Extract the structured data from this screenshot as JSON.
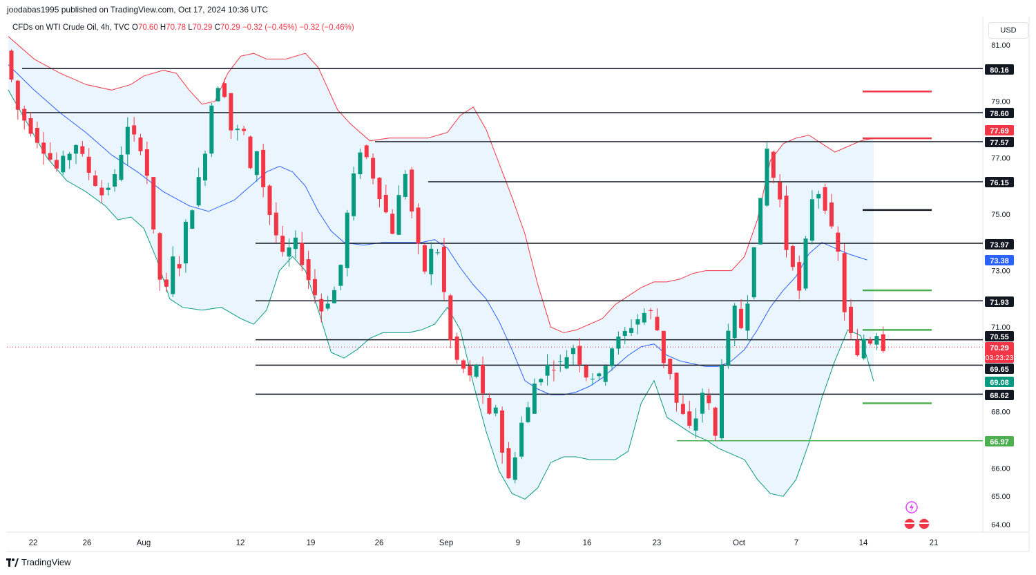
{
  "header": {
    "publisher_text": "joodabas1995 published on TradingView.com, Oct 17, 2024 10:36 UTC"
  },
  "legend": {
    "symbol": "CFDs on WTI Crude Oil, 4h, TVC",
    "open_label": "O",
    "open": "70.60",
    "high_label": "H",
    "high": "70.78",
    "low_label": "L",
    "low": "70.29",
    "close_label": "C",
    "close": "70.29",
    "change": "−0.32 (−0.45%)",
    "change2": "−0.32 (−0.46%)"
  },
  "currency_button": "USD",
  "brand": {
    "name": "TradingView",
    "icon": "tradingview-logo-icon"
  },
  "colors": {
    "up_candle": "#089981",
    "down_candle": "#f23645",
    "upper_band": "#f23645",
    "lower_band": "#089981",
    "basis_line": "#2962ff",
    "band_fill": "#e3f2fd",
    "level_line": "#131722",
    "green_level": "#4caf50",
    "red_level": "#f23645"
  },
  "chart_data": {
    "type": "candlestick",
    "symbol": "CFDs on WTI Crude Oil, 4h, TVC",
    "y_axis": {
      "range": [
        63.6,
        81.8
      ],
      "ticks": [
        "81.00",
        "79.00",
        "77.00",
        "75.00",
        "73.00",
        "71.00",
        "68.00",
        "66.00",
        "65.00",
        "64.00"
      ]
    },
    "x_axis": {
      "ticks": [
        "22",
        "26",
        "Aug",
        "12",
        "19",
        "26",
        "Sep",
        "9",
        "16",
        "23",
        "Oct",
        "7",
        "14",
        "21"
      ]
    },
    "price_labels": [
      {
        "text": "80.16",
        "value": 80.16,
        "kind": "level"
      },
      {
        "text": "78.60",
        "value": 78.6,
        "kind": "level"
      },
      {
        "text": "77.69",
        "value": 77.69,
        "kind": "upper_band"
      },
      {
        "text": "77.57",
        "value": 77.57,
        "kind": "level"
      },
      {
        "text": "76.15",
        "value": 76.15,
        "kind": "level"
      },
      {
        "text": "73.97",
        "value": 73.97,
        "kind": "level"
      },
      {
        "text": "73.38",
        "value": 73.38,
        "kind": "basis"
      },
      {
        "text": "71.93",
        "value": 71.93,
        "kind": "level"
      },
      {
        "text": "70.55",
        "value": 70.55,
        "kind": "level"
      },
      {
        "text": "70.29",
        "value": 70.29,
        "kind": "last",
        "countdown": "03:23:23"
      },
      {
        "text": "69.65",
        "value": 69.65,
        "kind": "level"
      },
      {
        "text": "69.08",
        "value": 69.08,
        "kind": "lower_band"
      },
      {
        "text": "68.62",
        "value": 68.62,
        "kind": "level"
      },
      {
        "text": "66.97",
        "value": 66.97,
        "kind": "green_level"
      }
    ],
    "horizontal_levels": [
      {
        "value": 80.16,
        "x_start": "Jul 22",
        "color": "level"
      },
      {
        "value": 78.6,
        "x_start": "Jul 22",
        "color": "level"
      },
      {
        "value": 77.57,
        "x_start": "Aug 26",
        "color": "level"
      },
      {
        "value": 76.15,
        "x_start": "Aug 30",
        "color": "level"
      },
      {
        "value": 73.97,
        "x_start": "Aug 19",
        "color": "level"
      },
      {
        "value": 71.93,
        "x_start": "Aug 19",
        "color": "level"
      },
      {
        "value": 70.55,
        "x_start": "Aug 19",
        "color": "level"
      },
      {
        "value": 69.65,
        "x_start": "Aug 19",
        "color": "level"
      },
      {
        "value": 68.62,
        "x_start": "Aug 19",
        "color": "level"
      },
      {
        "value": 66.97,
        "x_start": "Sep 24",
        "color": "green_level"
      }
    ],
    "target_marks": [
      {
        "value": 79.35,
        "color": "red_level"
      },
      {
        "value": 77.69,
        "color": "red_level"
      },
      {
        "value": 75.15,
        "color": "level_line"
      },
      {
        "value": 72.3,
        "color": "green_level"
      },
      {
        "value": 70.9,
        "color": "green_level"
      },
      {
        "value": 68.3,
        "color": "green_level"
      }
    ],
    "price_path": [
      [
        0,
        80.8
      ],
      [
        2,
        78.7
      ],
      [
        4,
        78.0
      ],
      [
        6,
        77.3
      ],
      [
        8,
        76.6
      ],
      [
        11,
        77.5
      ],
      [
        13,
        76.5
      ],
      [
        15,
        75.7
      ],
      [
        17,
        76.3
      ],
      [
        18,
        77.2
      ],
      [
        19,
        78.0
      ],
      [
        21,
        77.4
      ],
      [
        22,
        76.4
      ],
      [
        23,
        74.3
      ],
      [
        24,
        72.7
      ],
      [
        25,
        72.3
      ],
      [
        26,
        73.4
      ],
      [
        27,
        73.2
      ],
      [
        28,
        74.6
      ],
      [
        29,
        75.3
      ],
      [
        30,
        76.2
      ],
      [
        31,
        77.3
      ],
      [
        32,
        78.9
      ],
      [
        33,
        79.6
      ],
      [
        34,
        79.3
      ],
      [
        35,
        78.0
      ],
      [
        37,
        77.9
      ],
      [
        38,
        76.5
      ],
      [
        39,
        77.3
      ],
      [
        40,
        76.0
      ],
      [
        41,
        75.0
      ],
      [
        43,
        73.5
      ],
      [
        45,
        74.0
      ],
      [
        47,
        72.7
      ],
      [
        49,
        71.6
      ],
      [
        51,
        72.3
      ],
      [
        52,
        73.2
      ],
      [
        53,
        75.0
      ],
      [
        54,
        76.3
      ],
      [
        55,
        77.3
      ],
      [
        56,
        77.0
      ],
      [
        58,
        75.7
      ],
      [
        60,
        74.4
      ],
      [
        61,
        75.6
      ],
      [
        62,
        76.5
      ],
      [
        63,
        75.1
      ],
      [
        64,
        73.8
      ],
      [
        65,
        73.0
      ],
      [
        66,
        73.7
      ],
      [
        67,
        73.7
      ],
      [
        68,
        72.2
      ],
      [
        69,
        70.5
      ],
      [
        70,
        69.8
      ],
      [
        72,
        69.2
      ],
      [
        73,
        69.7
      ],
      [
        74,
        68.5
      ],
      [
        75,
        67.8
      ],
      [
        76,
        68.2
      ],
      [
        77,
        66.6
      ],
      [
        78,
        65.6
      ],
      [
        79,
        66.5
      ],
      [
        80,
        67.6
      ],
      [
        81,
        68.1
      ],
      [
        82,
        69.0
      ],
      [
        84,
        69.6
      ],
      [
        86,
        69.7
      ],
      [
        88,
        70.3
      ],
      [
        90,
        69.3
      ],
      [
        92,
        69.2
      ],
      [
        94,
        70.3
      ],
      [
        96,
        70.8
      ],
      [
        98,
        71.3
      ],
      [
        99,
        71.5
      ],
      [
        100,
        71.5
      ],
      [
        101,
        70.9
      ],
      [
        102,
        69.8
      ],
      [
        103,
        69.4
      ],
      [
        104,
        68.3
      ],
      [
        106,
        67.4
      ],
      [
        107,
        67.8
      ],
      [
        108,
        68.7
      ],
      [
        109,
        68.2
      ],
      [
        110,
        67.1
      ],
      [
        111,
        69.8
      ],
      [
        112,
        70.7
      ],
      [
        113,
        71.6
      ],
      [
        114,
        71.0
      ],
      [
        115,
        72.0
      ],
      [
        116,
        74.0
      ],
      [
        117,
        75.4
      ],
      [
        118,
        77.3
      ],
      [
        119,
        76.3
      ],
      [
        120,
        75.5
      ],
      [
        121,
        73.8
      ],
      [
        122,
        73.3
      ],
      [
        123,
        72.2
      ],
      [
        124,
        74.0
      ],
      [
        125,
        75.6
      ],
      [
        126,
        75.8
      ],
      [
        127,
        75.3
      ],
      [
        128,
        74.4
      ],
      [
        129,
        73.6
      ],
      [
        130,
        71.6
      ],
      [
        131,
        70.7
      ],
      [
        132,
        69.9
      ],
      [
        133,
        70.6
      ],
      [
        134,
        70.5
      ],
      [
        135,
        70.8
      ],
      [
        136,
        70.29
      ]
    ],
    "upper_band": [
      [
        0,
        81.3
      ],
      [
        4,
        80.5
      ],
      [
        8,
        80.0
      ],
      [
        12,
        79.6
      ],
      [
        16,
        79.4
      ],
      [
        19,
        79.6
      ],
      [
        21,
        79.9
      ],
      [
        24,
        80.1
      ],
      [
        26,
        80.0
      ],
      [
        28,
        79.4
      ],
      [
        30,
        78.9
      ],
      [
        32,
        79.0
      ],
      [
        34,
        80.0
      ],
      [
        36,
        80.6
      ],
      [
        38,
        80.7
      ],
      [
        40,
        80.5
      ],
      [
        43,
        80.5
      ],
      [
        46,
        80.7
      ],
      [
        48,
        80.2
      ],
      [
        51,
        78.7
      ],
      [
        53,
        78.2
      ],
      [
        56,
        77.6
      ],
      [
        59,
        77.7
      ],
      [
        62,
        77.7
      ],
      [
        65,
        77.7
      ],
      [
        68,
        77.9
      ],
      [
        70,
        78.5
      ],
      [
        72,
        78.8
      ],
      [
        74,
        78.0
      ],
      [
        76,
        76.8
      ],
      [
        78,
        75.6
      ],
      [
        80,
        74.3
      ],
      [
        82,
        72.5
      ],
      [
        84,
        71.0
      ],
      [
        86,
        70.8
      ],
      [
        88,
        70.9
      ],
      [
        90,
        71.1
      ],
      [
        92,
        71.3
      ],
      [
        94,
        71.8
      ],
      [
        96,
        72.1
      ],
      [
        98,
        72.4
      ],
      [
        100,
        72.6
      ],
      [
        102,
        72.6
      ],
      [
        104,
        72.7
      ],
      [
        106,
        72.9
      ],
      [
        108,
        73.0
      ],
      [
        110,
        73.0
      ],
      [
        112,
        73.0
      ],
      [
        114,
        73.5
      ],
      [
        116,
        74.8
      ],
      [
        118,
        76.9
      ],
      [
        120,
        77.5
      ],
      [
        122,
        77.7
      ],
      [
        124,
        77.8
      ],
      [
        126,
        77.5
      ],
      [
        128,
        77.2
      ],
      [
        130,
        77.4
      ],
      [
        132,
        77.6
      ],
      [
        134,
        77.69
      ]
    ],
    "basis": [
      [
        0,
        80.3
      ],
      [
        4,
        79.4
      ],
      [
        8,
        78.6
      ],
      [
        12,
        77.9
      ],
      [
        16,
        77.1
      ],
      [
        20,
        76.5
      ],
      [
        24,
        75.8
      ],
      [
        28,
        75.3
      ],
      [
        31,
        75.1
      ],
      [
        35,
        75.5
      ],
      [
        38,
        76.1
      ],
      [
        40,
        76.5
      ],
      [
        42,
        76.7
      ],
      [
        44,
        76.5
      ],
      [
        46,
        76.0
      ],
      [
        48,
        75.1
      ],
      [
        50,
        74.4
      ],
      [
        52,
        74.0
      ],
      [
        55,
        73.9
      ],
      [
        58,
        74.0
      ],
      [
        61,
        74.0
      ],
      [
        64,
        74.0
      ],
      [
        66,
        74.1
      ],
      [
        68,
        73.8
      ],
      [
        70,
        73.1
      ],
      [
        72,
        72.5
      ],
      [
        74,
        72.0
      ],
      [
        76,
        71.2
      ],
      [
        78,
        70.2
      ],
      [
        80,
        69.1
      ],
      [
        82,
        68.8
      ],
      [
        84,
        68.6
      ],
      [
        86,
        68.6
      ],
      [
        88,
        68.7
      ],
      [
        90,
        68.9
      ],
      [
        92,
        69.2
      ],
      [
        94,
        69.6
      ],
      [
        96,
        70.0
      ],
      [
        98,
        70.3
      ],
      [
        100,
        70.4
      ],
      [
        102,
        70.0
      ],
      [
        104,
        69.8
      ],
      [
        106,
        69.7
      ],
      [
        108,
        69.6
      ],
      [
        110,
        69.6
      ],
      [
        112,
        69.8
      ],
      [
        114,
        70.2
      ],
      [
        116,
        70.9
      ],
      [
        118,
        71.7
      ],
      [
        120,
        72.3
      ],
      [
        122,
        72.8
      ],
      [
        124,
        73.6
      ],
      [
        126,
        74.0
      ],
      [
        128,
        73.8
      ],
      [
        130,
        73.6
      ],
      [
        133,
        73.38
      ]
    ],
    "lower_band": [
      [
        0,
        79.4
      ],
      [
        3,
        78.2
      ],
      [
        6,
        77.0
      ],
      [
        9,
        76.2
      ],
      [
        12,
        75.8
      ],
      [
        15,
        75.3
      ],
      [
        17,
        74.8
      ],
      [
        19,
        74.9
      ],
      [
        21,
        74.5
      ],
      [
        23,
        73.4
      ],
      [
        25,
        72.0
      ],
      [
        27,
        71.7
      ],
      [
        30,
        71.6
      ],
      [
        33,
        71.7
      ],
      [
        36,
        71.3
      ],
      [
        38,
        71.1
      ],
      [
        40,
        71.6
      ],
      [
        42,
        73.0
      ],
      [
        44,
        73.5
      ],
      [
        46,
        73.0
      ],
      [
        48,
        71.6
      ],
      [
        50,
        70.1
      ],
      [
        52,
        69.9
      ],
      [
        54,
        70.2
      ],
      [
        56,
        70.6
      ],
      [
        58,
        70.8
      ],
      [
        60,
        70.8
      ],
      [
        62,
        70.8
      ],
      [
        64,
        70.9
      ],
      [
        66,
        71.1
      ],
      [
        68,
        71.7
      ],
      [
        70,
        70.9
      ],
      [
        72,
        69.0
      ],
      [
        74,
        67.3
      ],
      [
        76,
        65.9
      ],
      [
        78,
        65.1
      ],
      [
        80,
        64.9
      ],
      [
        82,
        65.3
      ],
      [
        84,
        66.2
      ],
      [
        86,
        66.4
      ],
      [
        88,
        66.4
      ],
      [
        90,
        66.3
      ],
      [
        92,
        66.3
      ],
      [
        94,
        66.3
      ],
      [
        96,
        66.6
      ],
      [
        98,
        68.3
      ],
      [
        100,
        69.1
      ],
      [
        102,
        67.8
      ],
      [
        104,
        67.5
      ],
      [
        106,
        67.2
      ],
      [
        108,
        67.0
      ],
      [
        110,
        66.7
      ],
      [
        112,
        66.5
      ],
      [
        114,
        66.3
      ],
      [
        116,
        65.6
      ],
      [
        118,
        65.1
      ],
      [
        120,
        65.0
      ],
      [
        122,
        65.6
      ],
      [
        124,
        66.9
      ],
      [
        126,
        68.5
      ],
      [
        128,
        69.8
      ],
      [
        130,
        70.9
      ],
      [
        132,
        70.7
      ],
      [
        134,
        69.08
      ]
    ]
  }
}
